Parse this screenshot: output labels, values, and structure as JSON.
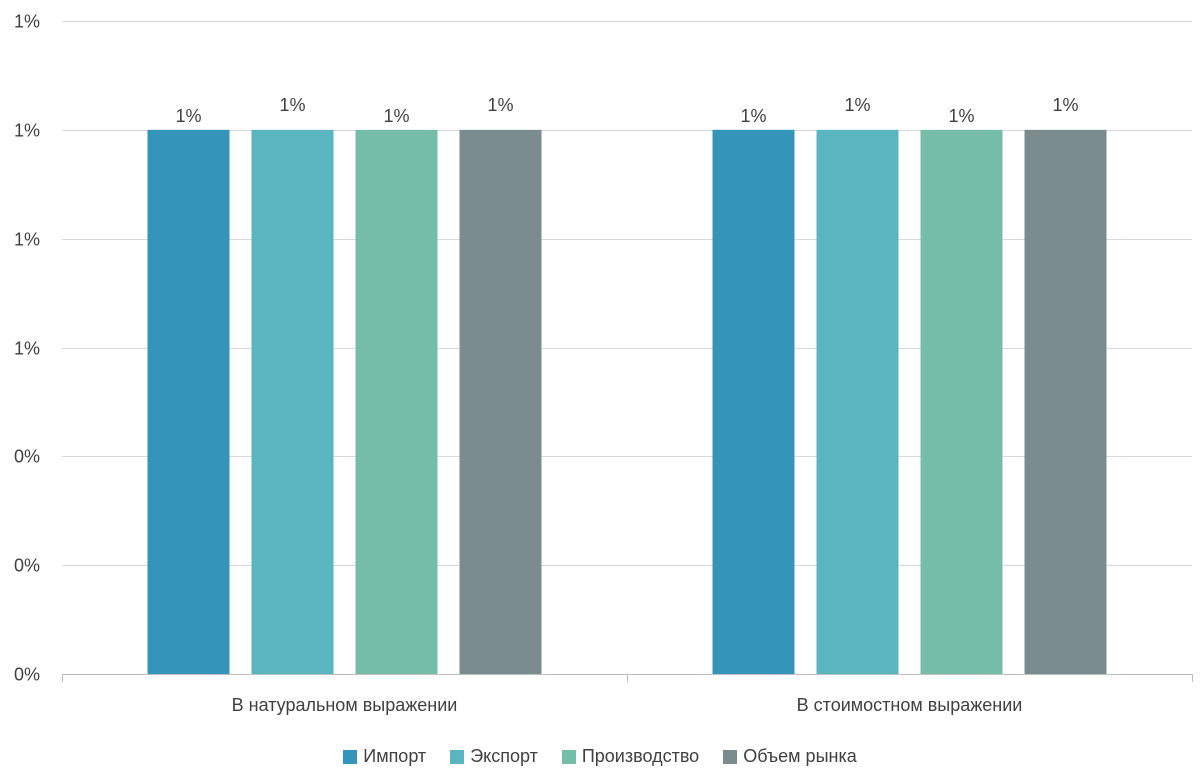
{
  "chart_data": {
    "type": "bar",
    "categories": [
      "В натуральном выражении",
      "В стоимостном выражении"
    ],
    "series": [
      {
        "name": "Импорт",
        "color": "#3594BA",
        "values": [
          1.0,
          1.0
        ],
        "labels": [
          "1%",
          "1%"
        ]
      },
      {
        "name": "Экспорт",
        "color": "#59B5BF",
        "values": [
          1.0,
          1.0
        ],
        "labels": [
          "1%",
          "1%"
        ]
      },
      {
        "name": "Производство",
        "color": "#76BDA7",
        "values": [
          1.0,
          1.0
        ],
        "labels": [
          "1%",
          "1%"
        ]
      },
      {
        "name": "Объем рынка",
        "color": "#7A8C8E",
        "values": [
          1.0,
          1.0
        ],
        "labels": [
          "1%",
          "1%"
        ]
      }
    ],
    "yticks": [
      0,
      0.2,
      0.4,
      0.6,
      0.8,
      1.0,
      1.2
    ],
    "ytick_labels": [
      "0%",
      "0%",
      "0%",
      "1%",
      "1%",
      "1%",
      "1%"
    ],
    "ylim": [
      0,
      1.2
    ],
    "grid": true,
    "legend_position": "bottom"
  }
}
